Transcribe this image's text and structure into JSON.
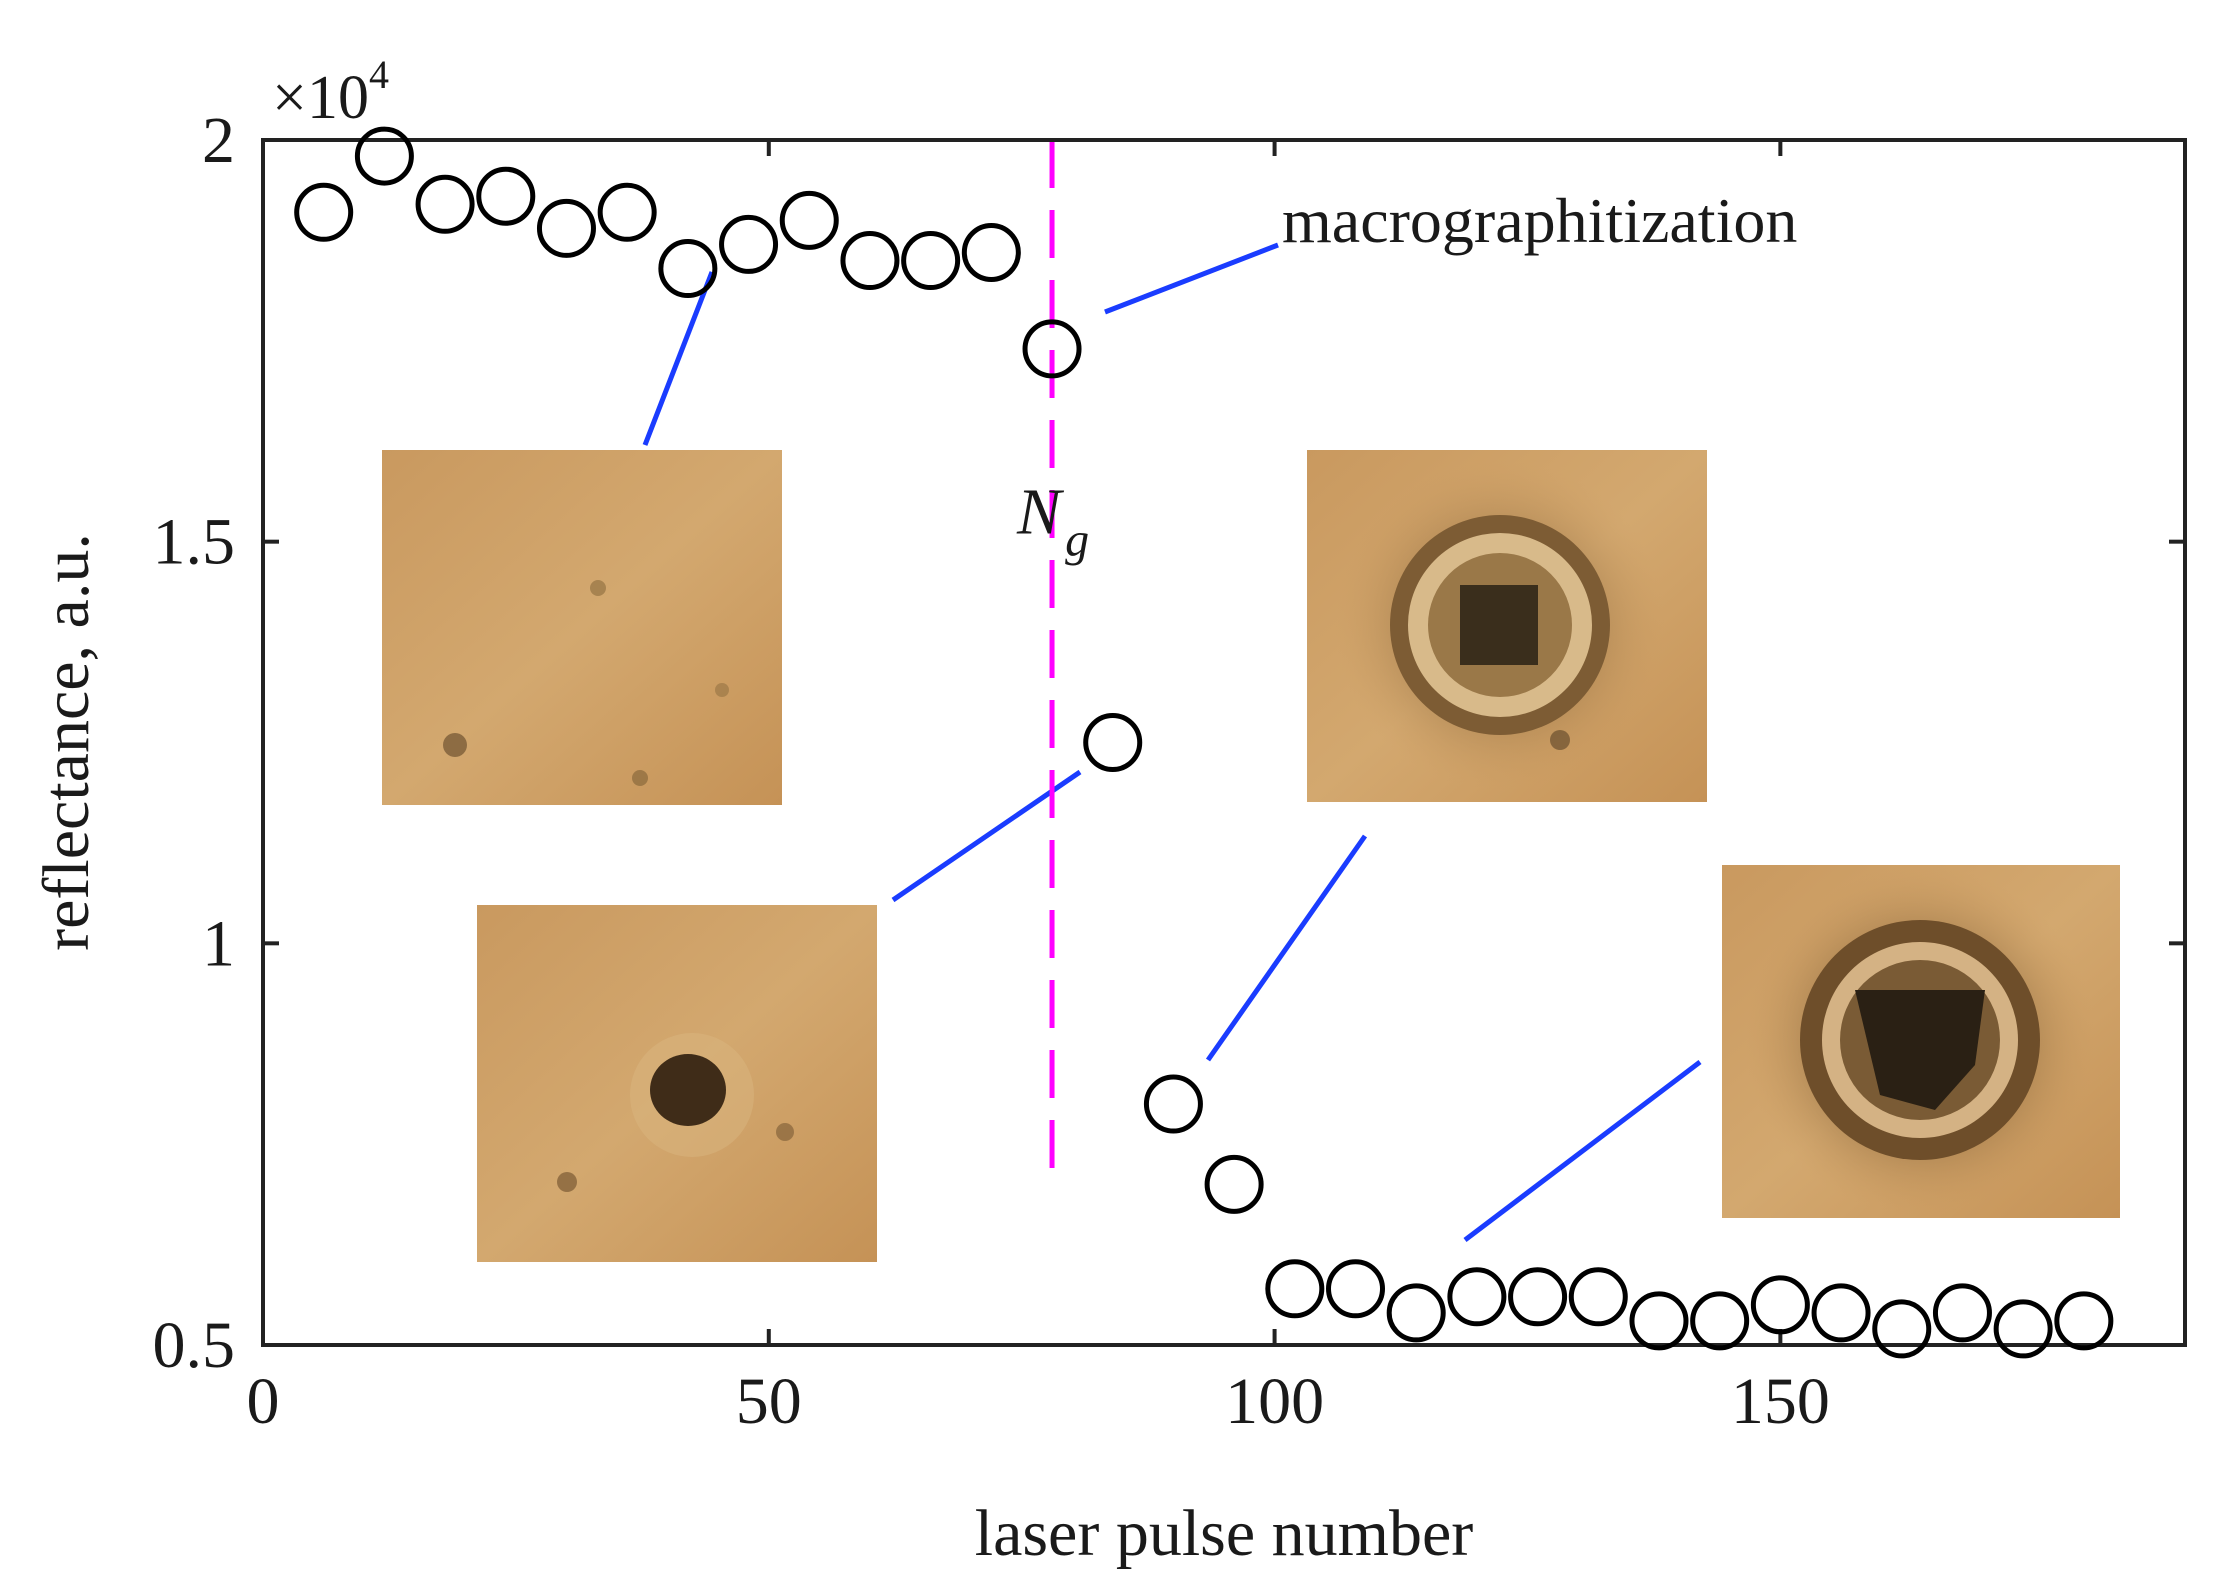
{
  "chart_data": {
    "type": "scatter",
    "xlabel": "laser pulse number",
    "ylabel": "reflectance, a.u.",
    "y_multiplier": "×10",
    "y_multiplier_exponent": "4",
    "xlim": [
      0,
      190
    ],
    "ylim": [
      0.5,
      2.0
    ],
    "x_ticks": [
      0,
      50,
      100,
      150
    ],
    "x_tick_labels": [
      "0",
      "50",
      "100",
      "150"
    ],
    "y_ticks": [
      0.5,
      1.0,
      1.5,
      2.0
    ],
    "y_tick_labels": [
      "0.5",
      "1",
      "1.5",
      "2"
    ],
    "grid": false,
    "marker": "open-circle",
    "marker_color": "#000000",
    "series": [
      {
        "x": [
          6,
          12,
          18,
          24,
          30,
          36,
          42,
          48,
          54,
          60,
          66,
          72,
          78,
          84,
          90,
          96,
          102,
          108,
          114,
          120,
          126,
          132,
          138,
          144,
          150,
          156,
          162,
          168,
          174,
          180
        ],
        "y": [
          1.91,
          1.98,
          1.92,
          1.93,
          1.89,
          1.91,
          1.84,
          1.87,
          1.9,
          1.85,
          1.85,
          1.86,
          1.74,
          1.25,
          0.8,
          0.7,
          0.57,
          0.57,
          0.54,
          0.56,
          0.56,
          0.56,
          0.53,
          0.53,
          0.55,
          0.54,
          0.52,
          0.54,
          0.52,
          0.53
        ]
      }
    ],
    "threshold": {
      "x": 78,
      "label": "N",
      "label_subscript": "g",
      "color": "#ff00ff",
      "style": "dashed"
    },
    "annotation": {
      "text": "macrographitization",
      "target_x": 78,
      "target_y": 1.74
    },
    "leader_color": "#1a3cff",
    "inset_images": [
      {
        "name": "surface-before-damage",
        "points_to_x": 42,
        "points_to_y": 1.84,
        "features": "faint-dots"
      },
      {
        "name": "surface-early-spot",
        "points_to_x": 84,
        "points_to_y": 1.25,
        "features": "dark-spot"
      },
      {
        "name": "surface-ring-crater",
        "points_to_x": 90,
        "points_to_y": 0.8,
        "features": "ring-crater"
      },
      {
        "name": "surface-late-crater",
        "points_to_x": 120,
        "points_to_y": 0.56,
        "features": "ring-crater-dark"
      }
    ]
  }
}
